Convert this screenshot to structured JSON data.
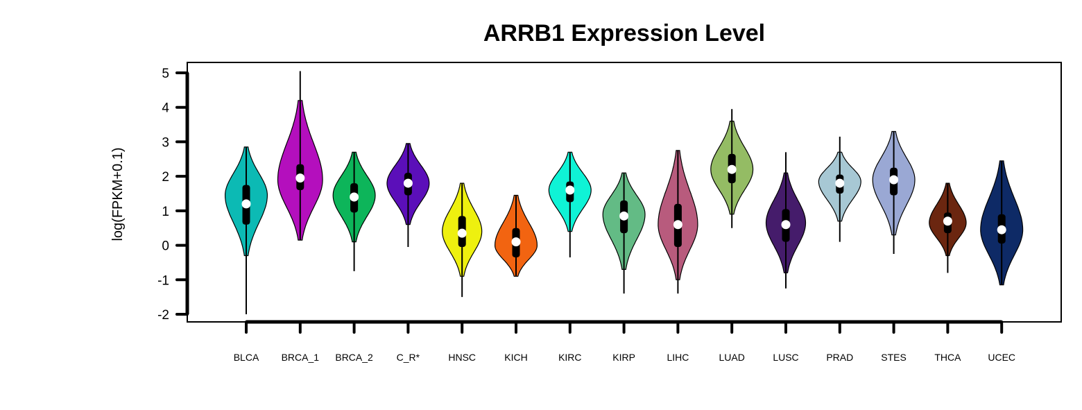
{
  "chart_data": {
    "type": "violin",
    "title": "ARRB1 Expression Level",
    "xlabel": "",
    "ylabel": "log(FPKM+0.1)",
    "ylim": [
      -2,
      5
    ],
    "yticks": [
      -2,
      -1,
      0,
      1,
      2,
      3,
      4,
      5
    ],
    "grid": false,
    "legend": "none",
    "categories": [
      "BLCA",
      "BRCA_1",
      "BRCA_2",
      "C_R*",
      "HNSC",
      "KICH",
      "KIRC",
      "KIRP",
      "LIHC",
      "LUAD",
      "LUSC",
      "PRAD",
      "STES",
      "THCA",
      "UCEC"
    ],
    "series": [
      {
        "category": "BLCA",
        "color": "#0cbab4",
        "min": -2.0,
        "q1": 0.6,
        "median": 1.2,
        "q3": 1.75,
        "max": 2.85,
        "tail_low": -0.3,
        "tail_high": 2.85,
        "mode": 1.45,
        "width": 0.8
      },
      {
        "category": "BRCA_1",
        "color": "#b40fbd",
        "min": 0.15,
        "q1": 1.6,
        "median": 1.95,
        "q3": 2.35,
        "max": 5.05,
        "tail_low": 0.15,
        "tail_high": 4.2,
        "mode": 1.9,
        "width": 0.85
      },
      {
        "category": "BRCA_2",
        "color": "#0db55a",
        "min": -0.75,
        "q1": 0.95,
        "median": 1.4,
        "q3": 1.8,
        "max": 2.7,
        "tail_low": 0.1,
        "tail_high": 2.7,
        "mode": 1.45,
        "width": 0.8
      },
      {
        "category": "C_R*",
        "color": "#5b0fb9",
        "min": -0.05,
        "q1": 1.45,
        "median": 1.8,
        "q3": 2.1,
        "max": 2.95,
        "tail_low": 0.6,
        "tail_high": 2.95,
        "mode": 1.8,
        "width": 0.8
      },
      {
        "category": "HNSC",
        "color": "#eef00f",
        "min": -1.5,
        "q1": -0.05,
        "median": 0.35,
        "q3": 0.85,
        "max": 1.8,
        "tail_low": -0.9,
        "tail_high": 1.8,
        "mode": 0.4,
        "width": 0.75
      },
      {
        "category": "KICH",
        "color": "#f26411",
        "min": -0.9,
        "q1": -0.35,
        "median": 0.1,
        "q3": 0.5,
        "max": 1.45,
        "tail_low": -0.9,
        "tail_high": 1.45,
        "mode": 0.0,
        "width": 0.8
      },
      {
        "category": "KIRC",
        "color": "#0ff3d6",
        "min": -0.35,
        "q1": 1.25,
        "median": 1.6,
        "q3": 1.85,
        "max": 2.7,
        "tail_low": 0.4,
        "tail_high": 2.7,
        "mode": 1.6,
        "width": 0.8
      },
      {
        "category": "KIRP",
        "color": "#63bb85",
        "min": -1.4,
        "q1": 0.35,
        "median": 0.85,
        "q3": 1.3,
        "max": 2.1,
        "tail_low": -0.7,
        "tail_high": 2.1,
        "mode": 0.9,
        "width": 0.8
      },
      {
        "category": "LIHC",
        "color": "#b85b7d",
        "min": -1.4,
        "q1": -0.05,
        "median": 0.6,
        "q3": 1.2,
        "max": 2.75,
        "tail_low": -1.0,
        "tail_high": 2.75,
        "mode": 0.6,
        "width": 0.75
      },
      {
        "category": "LUAD",
        "color": "#94bc64",
        "min": 0.5,
        "q1": 1.8,
        "median": 2.2,
        "q3": 2.65,
        "max": 3.95,
        "tail_low": 0.9,
        "tail_high": 3.6,
        "mode": 2.2,
        "width": 0.8
      },
      {
        "category": "LUSC",
        "color": "#451c6b",
        "min": -1.25,
        "q1": 0.1,
        "median": 0.6,
        "q3": 1.05,
        "max": 2.7,
        "tail_low": -0.8,
        "tail_high": 2.1,
        "mode": 0.65,
        "width": 0.75
      },
      {
        "category": "PRAD",
        "color": "#a7c8d4",
        "min": 0.1,
        "q1": 1.5,
        "median": 1.8,
        "q3": 2.05,
        "max": 3.15,
        "tail_low": 0.7,
        "tail_high": 2.7,
        "mode": 1.85,
        "width": 0.8
      },
      {
        "category": "STES",
        "color": "#9aa8d4",
        "min": -0.25,
        "q1": 1.45,
        "median": 1.9,
        "q3": 2.25,
        "max": 3.3,
        "tail_low": 0.3,
        "tail_high": 3.3,
        "mode": 1.9,
        "width": 0.8
      },
      {
        "category": "THCA",
        "color": "#6b2610",
        "min": -0.8,
        "q1": 0.35,
        "median": 0.7,
        "q3": 0.95,
        "max": 1.8,
        "tail_low": -0.3,
        "tail_high": 1.8,
        "mode": 0.65,
        "width": 0.7
      },
      {
        "category": "UCEC",
        "color": "#0e2a66",
        "min": -1.15,
        "q1": 0.05,
        "median": 0.45,
        "q3": 0.9,
        "max": 2.45,
        "tail_low": -1.15,
        "tail_high": 2.45,
        "mode": 0.45,
        "width": 0.8
      }
    ]
  }
}
